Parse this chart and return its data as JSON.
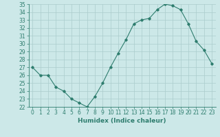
{
  "x": [
    0,
    1,
    2,
    3,
    4,
    5,
    6,
    7,
    8,
    9,
    10,
    11,
    12,
    13,
    14,
    15,
    16,
    17,
    18,
    19,
    20,
    21,
    22,
    23
  ],
  "y": [
    27,
    26,
    26,
    24.5,
    24,
    23,
    22.5,
    22,
    23.3,
    25,
    27,
    28.8,
    30.5,
    32.5,
    33,
    33.2,
    34.3,
    35,
    34.8,
    34.3,
    32.5,
    30.3,
    29.2,
    27.5
  ],
  "xlabel": "Humidex (Indice chaleur)",
  "ylim": [
    22,
    35
  ],
  "xlim": [
    -0.5,
    23.5
  ],
  "yticks": [
    22,
    23,
    24,
    25,
    26,
    27,
    28,
    29,
    30,
    31,
    32,
    33,
    34,
    35
  ],
  "xticks": [
    0,
    1,
    2,
    3,
    4,
    5,
    6,
    7,
    8,
    9,
    10,
    11,
    12,
    13,
    14,
    15,
    16,
    17,
    18,
    19,
    20,
    21,
    22,
    23
  ],
  "line_color": "#2e7d6e",
  "marker": "D",
  "marker_size": 1.8,
  "bg_color": "#cce8e8",
  "grid_color": "#aacccc",
  "label_fontsize": 6.5,
  "tick_fontsize": 5.5
}
